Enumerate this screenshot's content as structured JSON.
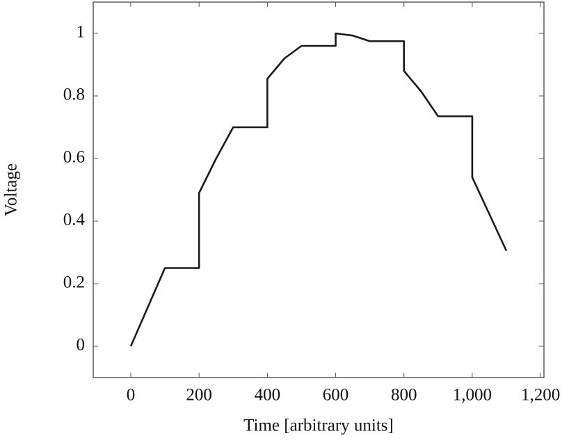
{
  "chart_data": {
    "type": "line",
    "x_label": "Time [arbitrary units]",
    "y_label": "Voltage",
    "x": [
      0,
      100,
      200,
      200,
      250,
      300,
      400,
      400,
      450,
      500,
      600,
      600,
      650,
      700,
      800,
      800,
      850,
      900,
      1000,
      1000,
      1100
    ],
    "series": [
      {
        "color": "#1a1a1a",
        "values": [
          0,
          0.25,
          0.25,
          0.49,
          0.6,
          0.7,
          0.7,
          0.855,
          0.92,
          0.96,
          0.96,
          1.0,
          0.993,
          0.975,
          0.975,
          0.88,
          0.815,
          0.735,
          0.735,
          0.54,
          0.305
        ]
      }
    ],
    "xlim": [
      -110,
      1210
    ],
    "ylim": [
      -0.1,
      1.1
    ],
    "xticks": [
      0,
      200,
      400,
      600,
      800,
      {
        "value": 1000,
        "label": "1,000"
      },
      {
        "value": 1200,
        "label": "1,200"
      }
    ],
    "yticks": [
      0,
      0.2,
      0.4,
      0.6,
      0.8,
      1
    ],
    "grid": false
  }
}
